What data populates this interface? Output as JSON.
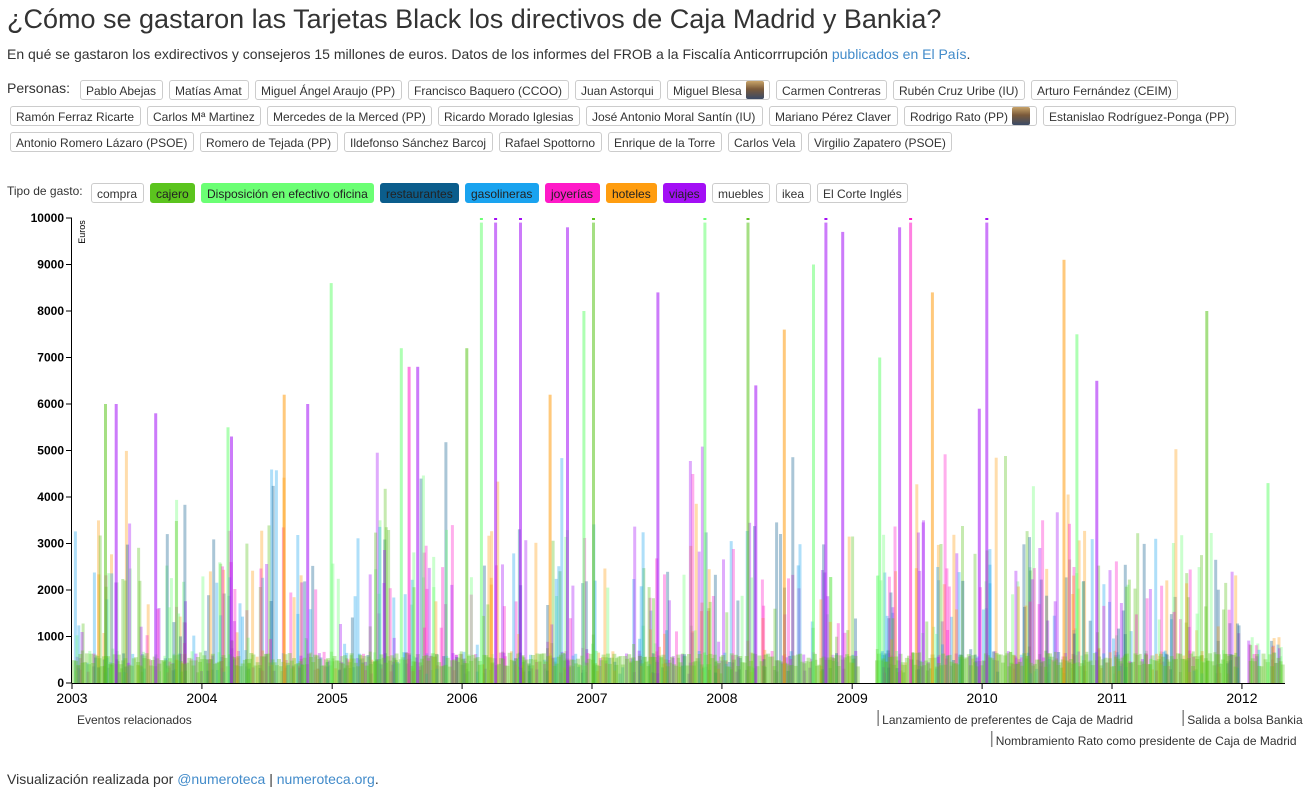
{
  "header": {
    "title": "¿Cómo se gastaron las Tarjetas Black los directivos de Caja Madrid y Bankia?",
    "subtitle_text": "En qué se gastaron los exdirectivos y consejeros 15 millones de euros. Datos de los informes del FROB a la Fiscalía Anticorrrupción ",
    "subtitle_link": "publicados en El País",
    "subtitle_end": "."
  },
  "personas": {
    "label": "Personas:",
    "items": [
      {
        "label": "Pablo Abejas"
      },
      {
        "label": "Matías Amat"
      },
      {
        "label": "Miguel Ángel Araujo (PP)"
      },
      {
        "label": "Francisco Baquero (CCOO)"
      },
      {
        "label": "Juan Astorqui"
      },
      {
        "label": "Miguel Blesa",
        "photo": true
      },
      {
        "label": "Carmen Contreras"
      },
      {
        "label": "Rubén Cruz Uribe (IU)"
      },
      {
        "label": "Arturo Fernández (CEIM)"
      },
      {
        "label": "Ramón Ferraz Ricarte"
      },
      {
        "label": "Carlos Mª Martinez"
      },
      {
        "label": "Mercedes de la Merced (PP)"
      },
      {
        "label": "Ricardo Morado Iglesias"
      },
      {
        "label": "José Antonio Moral Santín (IU)"
      },
      {
        "label": "Mariano Pérez Claver"
      },
      {
        "label": "Rodrigo Rato (PP)",
        "photo": true
      },
      {
        "label": "Estanislao Rodríguez-Ponga (PP)"
      },
      {
        "label": "Antonio Romero Lázaro (PSOE)"
      },
      {
        "label": "Romero de Tejada (PP)"
      },
      {
        "label": "Ildefonso Sánchez Barcoj"
      },
      {
        "label": "Rafael Spottorno"
      },
      {
        "label": "Enrique de la Torre"
      },
      {
        "label": "Carlos Vela"
      },
      {
        "label": "Virgilio Zapatero (PSOE)"
      }
    ]
  },
  "tipo_gasto": {
    "label": "Tipo de gasto:",
    "items": [
      {
        "label": "compra",
        "bg": "#ffffff",
        "fg": "#333333"
      },
      {
        "label": "cajero",
        "bg": "#5bc41e",
        "fg": "#222222"
      },
      {
        "label": "Disposición en efectivo oficina",
        "bg": "#6bff74",
        "fg": "#222222"
      },
      {
        "label": "restaurantes",
        "bg": "#0b5d8c",
        "fg": "#222222"
      },
      {
        "label": "gasolineras",
        "bg": "#1aa3ef",
        "fg": "#222222"
      },
      {
        "label": "joyerías",
        "bg": "#ff19c8",
        "fg": "#222222"
      },
      {
        "label": "hoteles",
        "bg": "#ff9d10",
        "fg": "#222222"
      },
      {
        "label": "viajes",
        "bg": "#a30ff5",
        "fg": "#222222"
      },
      {
        "label": "muebles",
        "bg": "#ffffff",
        "fg": "#333333"
      },
      {
        "label": "ikea",
        "bg": "#ffffff",
        "fg": "#333333"
      },
      {
        "label": "El Corte Inglés",
        "bg": "#ffffff",
        "fg": "#333333"
      }
    ]
  },
  "chart_data": {
    "type": "bar",
    "ylabel": "Euros",
    "ylim": [
      0,
      10000
    ],
    "yticks": [
      "0",
      "1000",
      "2000",
      "3000",
      "4000",
      "5000",
      "6000",
      "7000",
      "8000",
      "9000",
      "10000"
    ],
    "xlim": [
      "2003-01-01",
      "2012-05-01"
    ],
    "xticks": [
      "2003",
      "2004",
      "2005",
      "2006",
      "2007",
      "2008",
      "2009",
      "2010",
      "2011",
      "2012"
    ],
    "series_colors": {
      "cajero": "#5bc41e",
      "Disposición en efectivo oficina": "#6bff74",
      "restaurantes": "#0b5d8c",
      "gasolineras": "#1aa3ef",
      "joyerías": "#ff19c8",
      "hoteles": "#ff9d10",
      "viajes": "#a30ff5"
    },
    "highlight_bars": [
      {
        "date": "2003-04-01",
        "value": 6000,
        "category": "cajero"
      },
      {
        "date": "2003-05-01",
        "value": 6000,
        "category": "viajes"
      },
      {
        "date": "2003-08-20",
        "value": 5800,
        "category": "viajes"
      },
      {
        "date": "2004-03-10",
        "value": 5500,
        "category": "Disposición en efectivo oficina"
      },
      {
        "date": "2004-03-20",
        "value": 5300,
        "category": "viajes"
      },
      {
        "date": "2004-08-15",
        "value": 6200,
        "category": "hoteles"
      },
      {
        "date": "2004-10-20",
        "value": 6000,
        "category": "viajes"
      },
      {
        "date": "2004-12-25",
        "value": 8600,
        "category": "Disposición en efectivo oficina"
      },
      {
        "date": "2005-07-10",
        "value": 7200,
        "category": "Disposición en efectivo oficina"
      },
      {
        "date": "2005-08-01",
        "value": 6800,
        "category": "joyerías"
      },
      {
        "date": "2005-08-25",
        "value": 6800,
        "category": "viajes"
      },
      {
        "date": "2006-01-10",
        "value": 7200,
        "category": "cajero"
      },
      {
        "date": "2006-02-20",
        "value": 9900,
        "category": "Disposición en efectivo oficina"
      },
      {
        "date": "2006-04-01",
        "value": 9900,
        "category": "viajes"
      },
      {
        "date": "2006-06-10",
        "value": 9900,
        "category": "viajes"
      },
      {
        "date": "2006-09-01",
        "value": 6200,
        "category": "hoteles"
      },
      {
        "date": "2006-10-20",
        "value": 9800,
        "category": "viajes"
      },
      {
        "date": "2006-12-05",
        "value": 8000,
        "category": "Disposición en efectivo oficina"
      },
      {
        "date": "2007-01-01",
        "value": 9900,
        "category": "cajero"
      },
      {
        "date": "2007-07-01",
        "value": 8400,
        "category": "viajes"
      },
      {
        "date": "2007-11-10",
        "value": 9900,
        "category": "Disposición en efectivo oficina"
      },
      {
        "date": "2008-03-10",
        "value": 9900,
        "category": "cajero"
      },
      {
        "date": "2008-04-01",
        "value": 6400,
        "category": "viajes"
      },
      {
        "date": "2008-06-20",
        "value": 7600,
        "category": "hoteles"
      },
      {
        "date": "2008-09-10",
        "value": 9000,
        "category": "Disposición en efectivo oficina"
      },
      {
        "date": "2008-10-15",
        "value": 9900,
        "category": "viajes"
      },
      {
        "date": "2008-12-01",
        "value": 9700,
        "category": "viajes"
      },
      {
        "date": "2009-03-15",
        "value": 7000,
        "category": "Disposición en efectivo oficina"
      },
      {
        "date": "2009-05-10",
        "value": 9800,
        "category": "viajes"
      },
      {
        "date": "2009-06-10",
        "value": 9900,
        "category": "joyerías"
      },
      {
        "date": "2009-08-10",
        "value": 8400,
        "category": "hoteles"
      },
      {
        "date": "2009-12-20",
        "value": 5900,
        "category": "viajes"
      },
      {
        "date": "2010-01-10",
        "value": 9900,
        "category": "viajes"
      },
      {
        "date": "2010-08-15",
        "value": 9100,
        "category": "hoteles"
      },
      {
        "date": "2010-09-20",
        "value": 7500,
        "category": "Disposición en efectivo oficina"
      },
      {
        "date": "2010-11-15",
        "value": 6500,
        "category": "viajes"
      },
      {
        "date": "2011-09-20",
        "value": 8000,
        "category": "cajero"
      },
      {
        "date": "2012-03-10",
        "value": 4300,
        "category": "Disposición en efectivo oficina"
      }
    ],
    "events_label": "Eventos relacionados",
    "events": [
      {
        "date": "2009-03-15",
        "label": "Lanzamiento de preferentes de Caja de Madrid",
        "row": 0
      },
      {
        "date": "2010-01-28",
        "label": "Nombramiento Rato como presidente de Caja de Madrid",
        "row": 1
      },
      {
        "date": "2011-07-20",
        "label": "Salida a bolsa Bankia",
        "row": 0
      }
    ]
  },
  "footer": {
    "text": "Visualización realizada por ",
    "link1": "@numeroteca",
    "sep": " | ",
    "link2": "numeroteca.org",
    "end": "."
  }
}
